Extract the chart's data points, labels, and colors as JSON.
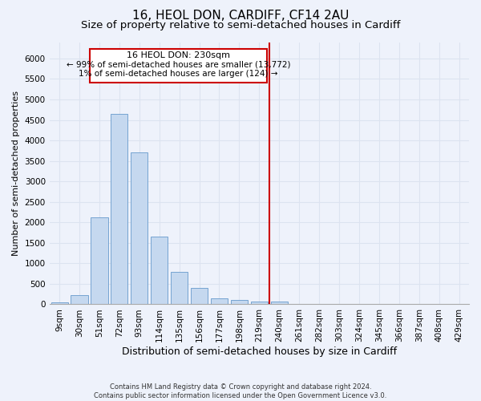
{
  "title": "16, HEOL DON, CARDIFF, CF14 2AU",
  "subtitle": "Size of property relative to semi-detached houses in Cardiff",
  "xlabel": "Distribution of semi-detached houses by size in Cardiff",
  "ylabel": "Number of semi-detached properties",
  "footer_line1": "Contains HM Land Registry data © Crown copyright and database right 2024.",
  "footer_line2": "Contains public sector information licensed under the Open Government Licence v3.0.",
  "bin_labels": [
    "9sqm",
    "30sqm",
    "51sqm",
    "72sqm",
    "93sqm",
    "114sqm",
    "135sqm",
    "156sqm",
    "177sqm",
    "198sqm",
    "219sqm",
    "240sqm",
    "261sqm",
    "282sqm",
    "303sqm",
    "324sqm",
    "345sqm",
    "366sqm",
    "387sqm",
    "408sqm",
    "429sqm"
  ],
  "bar_values": [
    50,
    230,
    2120,
    4650,
    3700,
    1650,
    800,
    400,
    150,
    100,
    60,
    60,
    0,
    0,
    0,
    0,
    0,
    0,
    0,
    0,
    0
  ],
  "bar_color": "#c5d8ef",
  "bar_edgecolor": "#6699cc",
  "ylim": [
    0,
    6400
  ],
  "yticks": [
    0,
    500,
    1000,
    1500,
    2000,
    2500,
    3000,
    3500,
    4000,
    4500,
    5000,
    5500,
    6000
  ],
  "grid_color": "#dce3f0",
  "bg_color": "#eef2fb",
  "annotation_label": "16 HEOL DON: 230sqm",
  "annotation_line1": "← 99% of semi-detached houses are smaller (13,772)",
  "annotation_line2": "1% of semi-detached houses are larger (124) →",
  "vline_color": "#cc0000",
  "box_edgecolor": "#cc0000",
  "title_fontsize": 11,
  "subtitle_fontsize": 9.5,
  "ylabel_fontsize": 8,
  "xlabel_fontsize": 9,
  "tick_fontsize": 7.5,
  "annot_fontsize": 8,
  "footer_fontsize": 6
}
